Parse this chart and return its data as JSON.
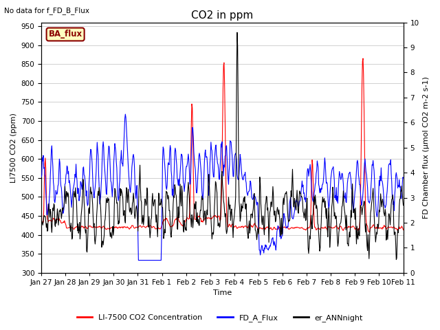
{
  "title": "CO2 in ppm",
  "top_left_text": "No data for f_FD_B_Flux",
  "ba_flux_label": "BA_flux",
  "xlabel": "Time",
  "ylabel_left": "LI7500 CO2 (ppm)",
  "ylabel_right": "FD Chamber flux (µmol CO2 m-2 s-1)",
  "ylim_left": [
    300,
    960
  ],
  "ylim_right": [
    0.0,
    10.0
  ],
  "yticks_left": [
    300,
    350,
    400,
    450,
    500,
    550,
    600,
    650,
    700,
    750,
    800,
    850,
    900,
    950
  ],
  "yticks_right": [
    0.0,
    1.0,
    2.0,
    3.0,
    4.0,
    5.0,
    6.0,
    7.0,
    8.0,
    9.0,
    10.0
  ],
  "xtick_labels": [
    "Jan 27",
    "Jan 28",
    "Jan 29",
    "Jan 30",
    "Jan 31",
    "Feb 1",
    "Feb 2",
    "Feb 3",
    "Feb 4",
    "Feb 5",
    "Feb 6",
    "Feb 7",
    "Feb 8",
    "Feb 9",
    "Feb 10",
    "Feb 11"
  ],
  "n_days": 15,
  "points_per_day": 48,
  "fig_bg_color": "#ffffff",
  "plot_bg_color": "#ffffff",
  "grid_color": "#d0d0d0",
  "line_red": "#ff0000",
  "line_blue": "#0000ff",
  "line_black": "#000000",
  "legend_entries": [
    "LI-7500 CO2 Concentration",
    "FD_A_Flux",
    "er_ANNnight"
  ],
  "legend_colors": [
    "#ff0000",
    "#0000ff",
    "#000000"
  ],
  "title_fontsize": 11,
  "label_fontsize": 8,
  "tick_fontsize": 7.5
}
